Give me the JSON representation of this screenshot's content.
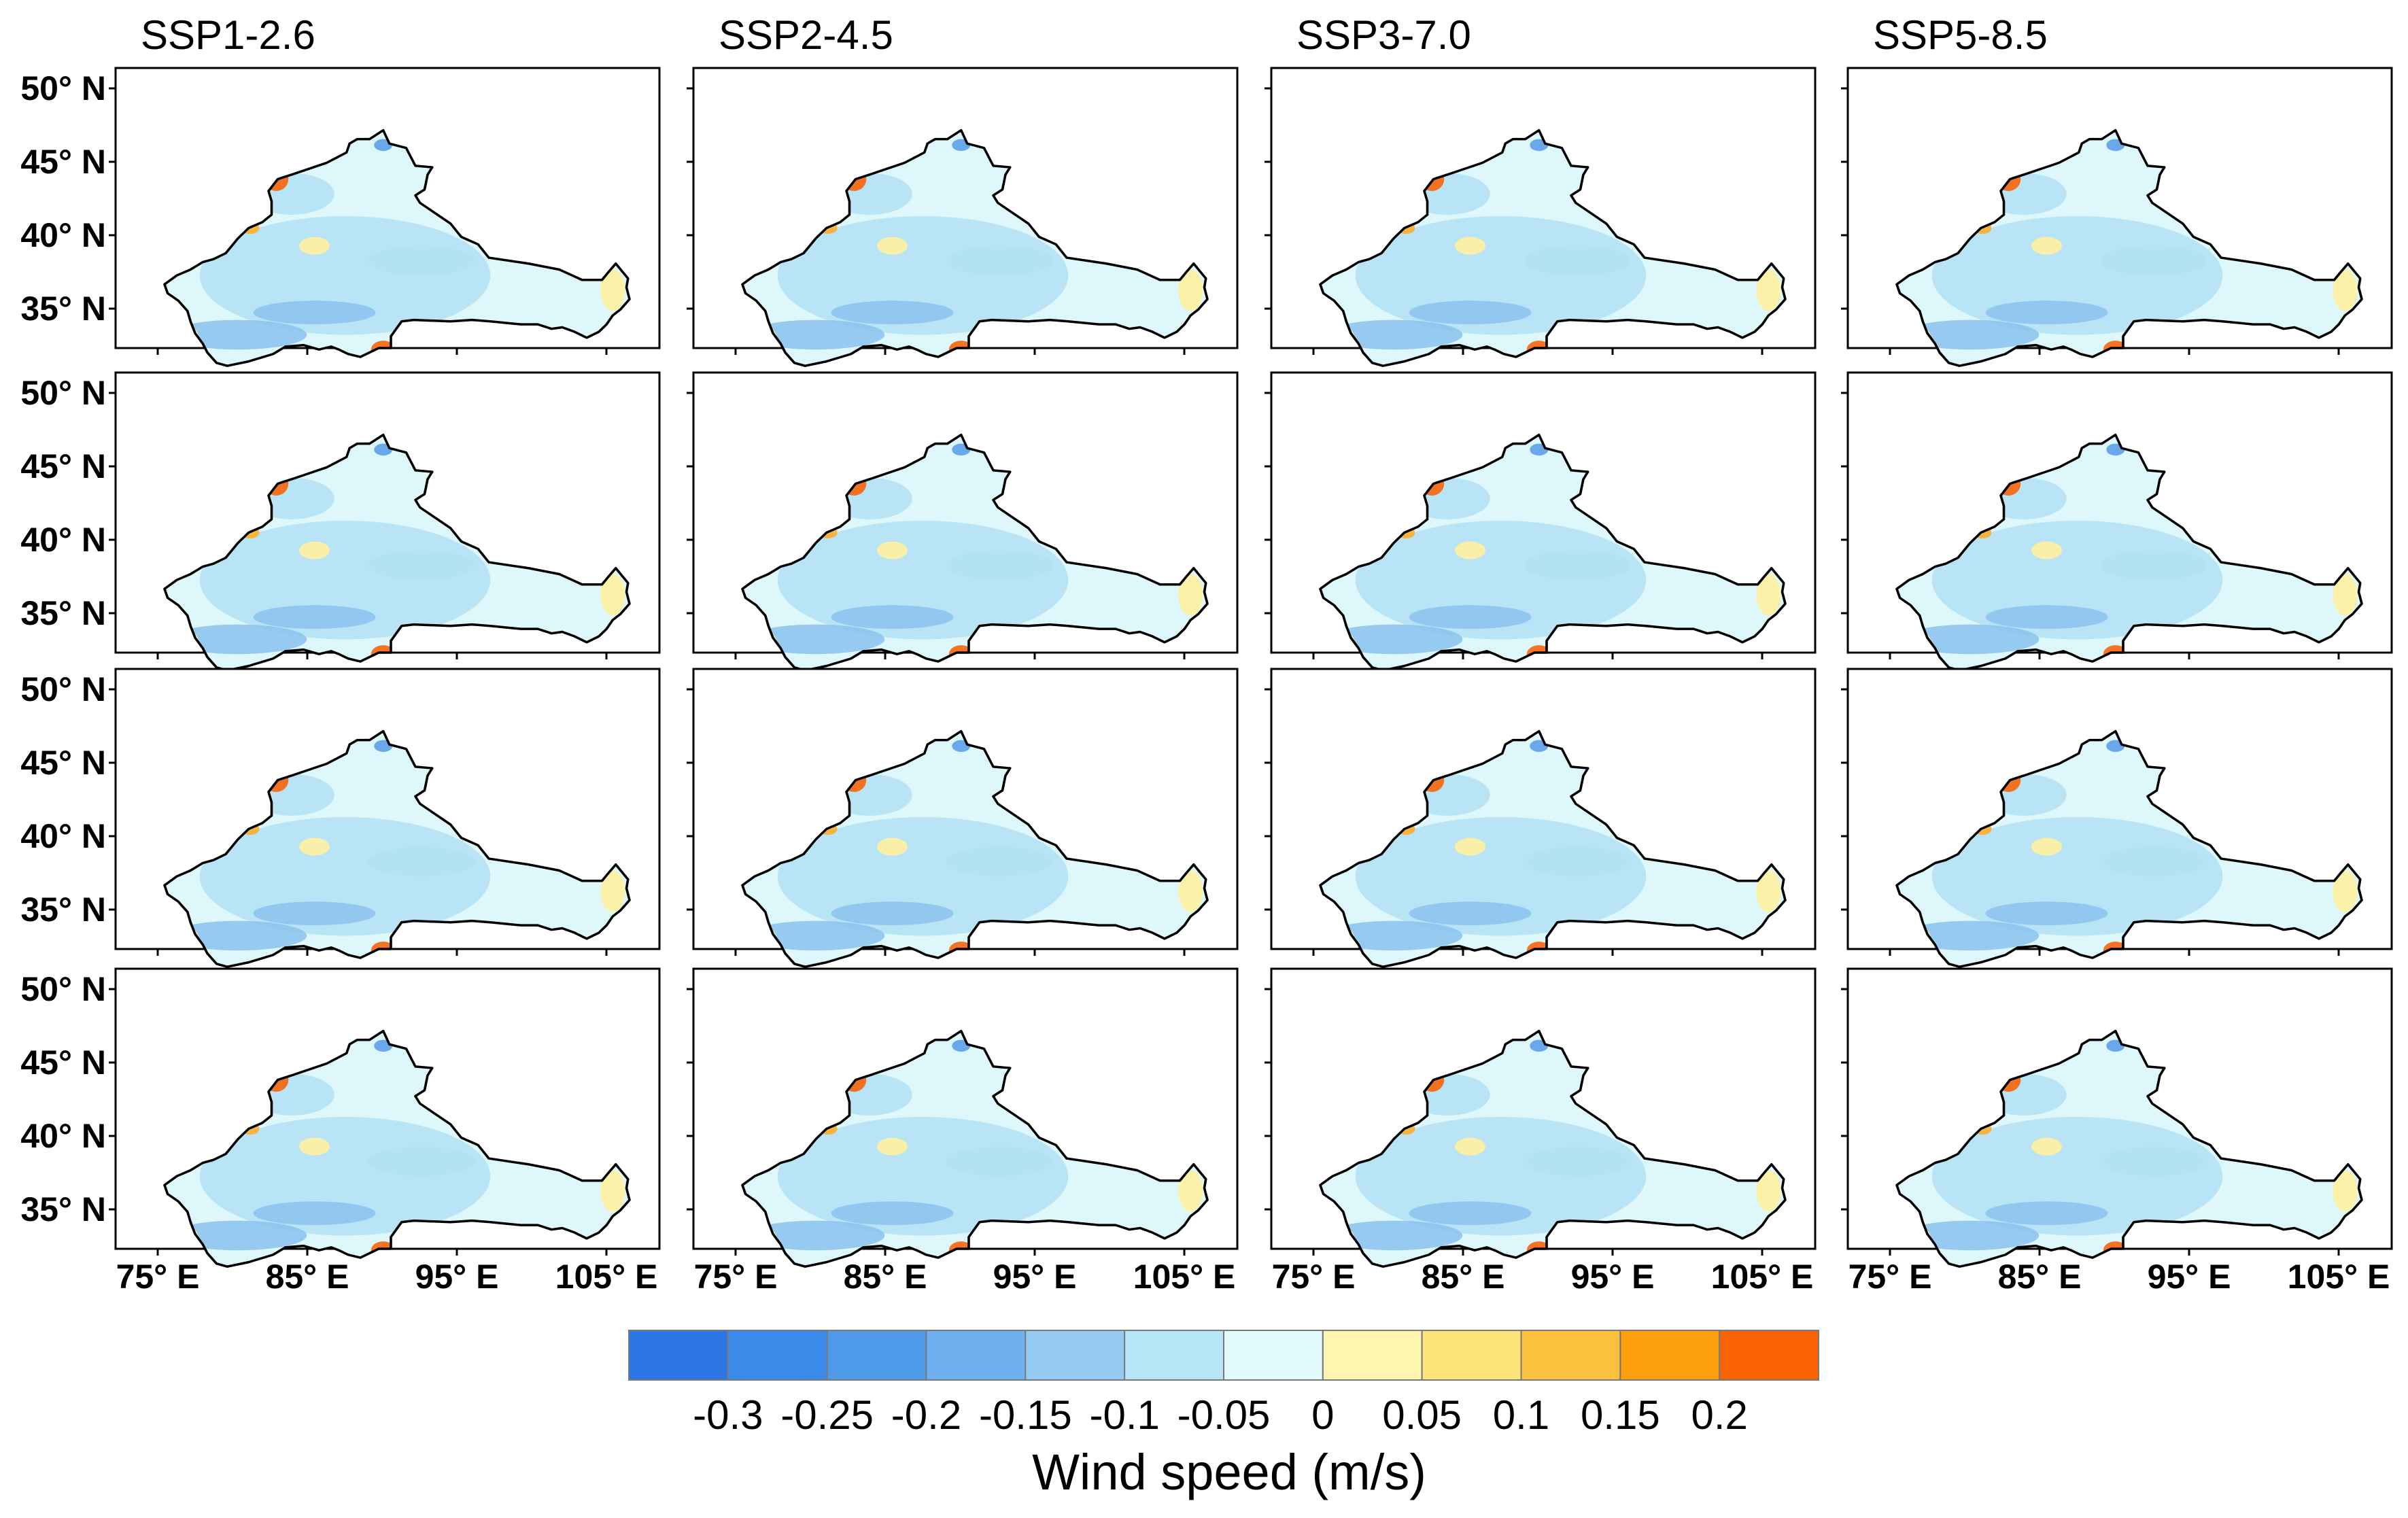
{
  "scenarios": [
    "SSP1-2.6",
    "SSP2-4.5",
    "SSP3-7.0",
    "SSP5-8.5"
  ],
  "row_count": 4,
  "lat_labels": [
    "50° N",
    "45° N",
    "40° N",
    "35° N"
  ],
  "lon_labels": [
    "75° E",
    "85° E",
    "95° E",
    "105° E"
  ],
  "colorbar": {
    "title": "Wind speed (m/s)",
    "labels": [
      "-0.3",
      "-0.25",
      "-0.2",
      "-0.15",
      "-0.1",
      "-0.05",
      "0",
      "0.05",
      "0.1",
      "0.15",
      "0.2"
    ],
    "colors": [
      "#2e75e6",
      "#3a8aea",
      "#4f9ae8",
      "#6fb0f0",
      "#95cbf3",
      "#b6e6f7",
      "#e2fbfd",
      "#fff5b0",
      "#fee47a",
      "#fcc03f",
      "#fb9f0e",
      "#fa6405"
    ]
  },
  "palette": {
    "background_fill": "#ddf7fb",
    "light_blue": "#b4e1f5",
    "mid_blue": "#8ec4ef",
    "deep_blue": "#5c9ee8",
    "yellow": "#fff0a0",
    "orange": "#fcae2b",
    "red": "#f7640b",
    "outline": "#000000"
  }
}
